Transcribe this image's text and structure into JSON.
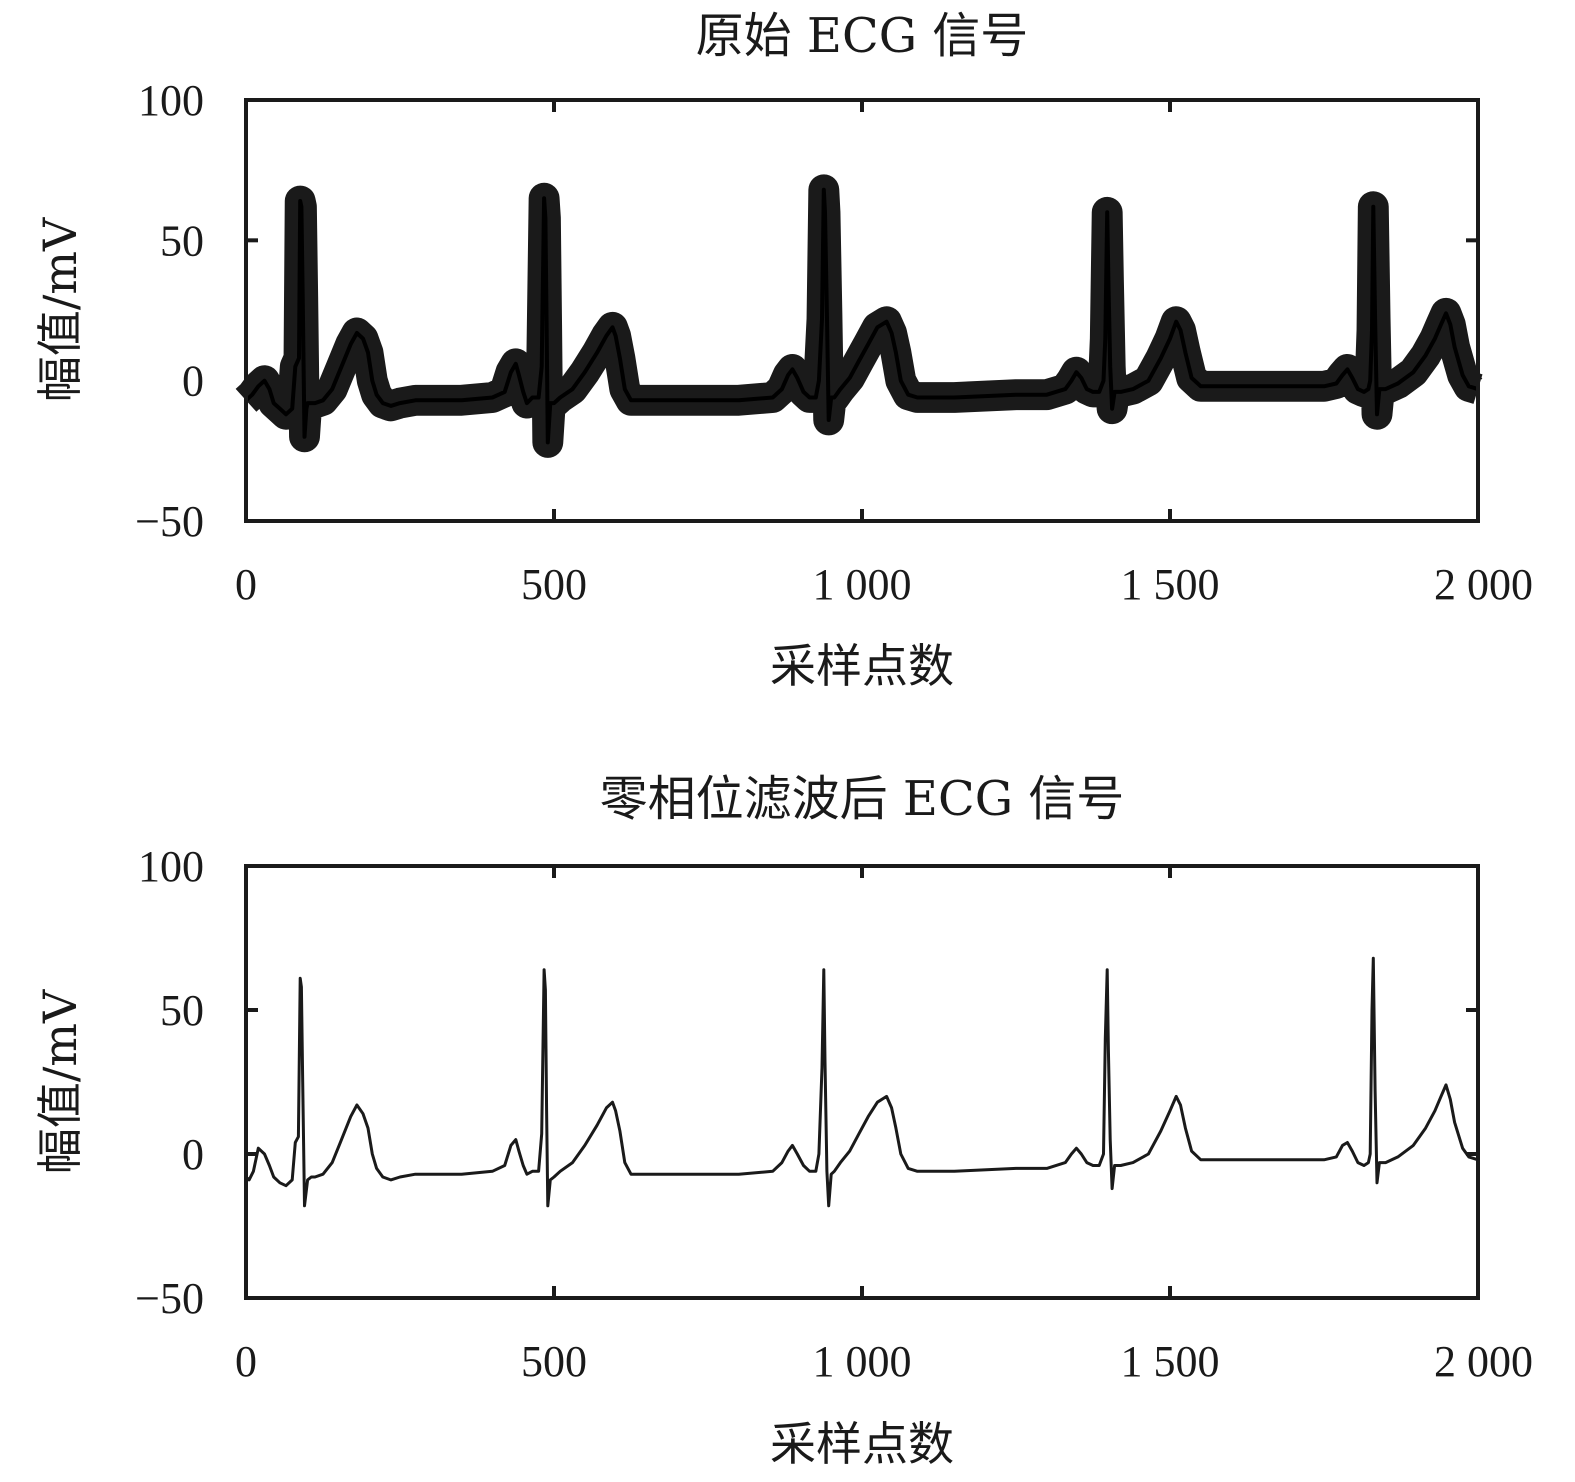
{
  "chart_data": [
    {
      "type": "line",
      "title": "原始 ECG 信号",
      "xlabel": "采样点数",
      "ylabel": "幅值/mV",
      "xlim": [
        0,
        2000
      ],
      "ylim": [
        -50,
        100
      ],
      "xticks": [
        0,
        500,
        1000,
        1500,
        2000
      ],
      "xtick_labels": [
        "0",
        "500",
        "1 000",
        "1 500",
        "2 000"
      ],
      "yticks": [
        -50,
        0,
        50,
        100
      ],
      "ytick_labels": [
        "−50",
        "0",
        "50",
        "100"
      ],
      "grid": false,
      "noise_band": 5,
      "series": [
        {
          "x": [
            0,
            10,
            20,
            30,
            38,
            45,
            55,
            65,
            75,
            80,
            86,
            88,
            90,
            92,
            95,
            98,
            100,
            104,
            108,
            112,
            125,
            140,
            155,
            170,
            180,
            190,
            198,
            205,
            212,
            222,
            235,
            250,
            275,
            300,
            350,
            400,
            420,
            430,
            438,
            443,
            450,
            456,
            465,
            475,
            480,
            484,
            486,
            488,
            490,
            494,
            500,
            510,
            530,
            550,
            570,
            585,
            595,
            600,
            607,
            615,
            625,
            640,
            700,
            800,
            855,
            870,
            880,
            887,
            895,
            905,
            915,
            925,
            930,
            935,
            938,
            940,
            943,
            946,
            950,
            955,
            965,
            980,
            995,
            1010,
            1025,
            1040,
            1048,
            1055,
            1063,
            1075,
            1090,
            1150,
            1250,
            1300,
            1330,
            1340,
            1348,
            1356,
            1365,
            1375,
            1385,
            1392,
            1395,
            1398,
            1400,
            1403,
            1406,
            1410,
            1420,
            1440,
            1465,
            1485,
            1500,
            1510,
            1517,
            1525,
            1535,
            1550,
            1600,
            1700,
            1750,
            1770,
            1780,
            1788,
            1796,
            1805,
            1815,
            1822,
            1825,
            1828,
            1830,
            1833,
            1836,
            1840,
            1850,
            1870,
            1895,
            1915,
            1930,
            1940,
            1948,
            1955,
            1962,
            1975,
            1985,
            2000
          ],
          "y": [
            -7,
            -5,
            -2,
            0,
            -3,
            -8,
            -10,
            -12,
            -10,
            5,
            8,
            64,
            62,
            30,
            -20,
            -10,
            -8,
            -8,
            -8,
            -8,
            -7,
            -3,
            5,
            13,
            17,
            15,
            10,
            0,
            -5,
            -8,
            -9,
            -8,
            -7,
            -7,
            -7,
            -6,
            -4,
            3,
            6,
            2,
            -4,
            -8,
            -6,
            -6,
            5,
            65,
            58,
            20,
            -22,
            -8,
            -8,
            -6,
            -3,
            3,
            10,
            16,
            19,
            16,
            8,
            -3,
            -7,
            -7,
            -7,
            -7,
            -6,
            -3,
            2,
            4,
            1,
            -4,
            -6,
            -6,
            0,
            22,
            68,
            60,
            24,
            -14,
            -6,
            -6,
            -3,
            1,
            7,
            13,
            19,
            21,
            17,
            10,
            0,
            -5,
            -6,
            -6,
            -5,
            -5,
            -3,
            0,
            3,
            1,
            -3,
            -4,
            -4,
            0,
            15,
            60,
            36,
            5,
            -10,
            -4,
            -4,
            -3,
            0,
            8,
            15,
            21,
            18,
            10,
            1,
            -2,
            -2,
            -2,
            -2,
            -1,
            2,
            4,
            1,
            -3,
            -4,
            -3,
            0,
            18,
            62,
            22,
            -12,
            -3,
            -3,
            -1,
            3,
            9,
            15,
            20,
            24,
            20,
            12,
            2,
            -2,
            -3
          ]
        }
      ]
    },
    {
      "type": "line",
      "title": "零相位滤波后 ECG 信号",
      "xlabel": "采样点数",
      "ylabel": "幅值/mV",
      "xlim": [
        0,
        2000
      ],
      "ylim": [
        -50,
        100
      ],
      "xticks": [
        0,
        500,
        1000,
        1500,
        2000
      ],
      "xtick_labels": [
        "0",
        "500",
        "1 000",
        "1 500",
        "2 000"
      ],
      "yticks": [
        -50,
        0,
        50,
        100
      ],
      "ytick_labels": [
        "−50",
        "0",
        "50",
        "100"
      ],
      "grid": false,
      "noise_band": 0,
      "series": [
        {
          "x": [
            0,
            5,
            12,
            20,
            30,
            38,
            45,
            55,
            65,
            75,
            80,
            85,
            88,
            90,
            92,
            95,
            100,
            106,
            112,
            125,
            140,
            155,
            170,
            180,
            190,
            198,
            205,
            212,
            222,
            235,
            250,
            275,
            300,
            350,
            400,
            420,
            430,
            438,
            443,
            450,
            456,
            465,
            475,
            480,
            484,
            486,
            488,
            490,
            494,
            500,
            510,
            530,
            550,
            570,
            585,
            595,
            600,
            607,
            615,
            625,
            640,
            700,
            800,
            855,
            870,
            880,
            887,
            895,
            905,
            915,
            925,
            930,
            935,
            938,
            940,
            943,
            946,
            950,
            955,
            965,
            980,
            995,
            1010,
            1025,
            1040,
            1048,
            1055,
            1063,
            1075,
            1090,
            1150,
            1250,
            1300,
            1330,
            1340,
            1348,
            1356,
            1365,
            1375,
            1385,
            1392,
            1395,
            1398,
            1400,
            1403,
            1406,
            1410,
            1420,
            1440,
            1465,
            1485,
            1500,
            1510,
            1517,
            1525,
            1535,
            1550,
            1600,
            1700,
            1750,
            1770,
            1780,
            1788,
            1796,
            1805,
            1815,
            1822,
            1825,
            1828,
            1830,
            1833,
            1836,
            1840,
            1850,
            1870,
            1895,
            1915,
            1930,
            1940,
            1948,
            1955,
            1962,
            1975,
            1985,
            2000
          ],
          "y": [
            -8,
            -9,
            -6,
            2,
            0,
            -4,
            -8,
            -10,
            -11,
            -9,
            4,
            6,
            61,
            58,
            25,
            -18,
            -9,
            -8,
            -8,
            -7,
            -3,
            5,
            13,
            17,
            14,
            9,
            0,
            -5,
            -8,
            -9,
            -8,
            -7,
            -7,
            -7,
            -6,
            -4,
            3,
            5,
            1,
            -4,
            -7,
            -6,
            -6,
            7,
            64,
            57,
            15,
            -18,
            -9,
            -8,
            -6,
            -3,
            3,
            10,
            16,
            18,
            15,
            8,
            -3,
            -7,
            -7,
            -7,
            -7,
            -6,
            -3,
            1,
            3,
            0,
            -4,
            -6,
            -6,
            0,
            30,
            64,
            32,
            -6,
            -18,
            -7,
            -6,
            -3,
            1,
            7,
            13,
            18,
            20,
            16,
            9,
            0,
            -5,
            -6,
            -6,
            -5,
            -5,
            -3,
            0,
            2,
            0,
            -3,
            -4,
            -4,
            0,
            40,
            64,
            36,
            5,
            -12,
            -4,
            -4,
            -3,
            0,
            8,
            15,
            20,
            17,
            9,
            1,
            -2,
            -2,
            -2,
            -2,
            -1,
            3,
            4,
            1,
            -3,
            -4,
            -3,
            0,
            50,
            68,
            22,
            -10,
            -3,
            -3,
            -1,
            3,
            9,
            15,
            20,
            24,
            19,
            11,
            2,
            -1,
            -2
          ]
        }
      ]
    }
  ]
}
